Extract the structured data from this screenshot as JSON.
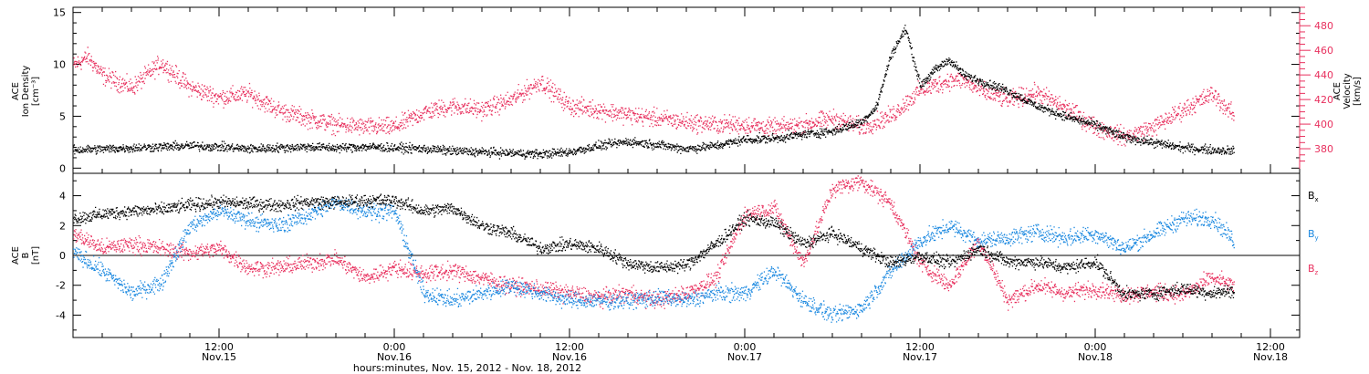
{
  "colors": {
    "black": "#000000",
    "pink": "#e8305e",
    "blue": "#1a88e0"
  },
  "footer": {
    "xlabel": "hours:minutes, Nov. 15, 2012 - Nov. 18, 2012"
  },
  "x_ticks": [
    {
      "t": 12,
      "line1": "12:00",
      "line2": "Nov.15"
    },
    {
      "t": 24,
      "line1": "0:00",
      "line2": "Nov.16"
    },
    {
      "t": 36,
      "line1": "12:00",
      "line2": "Nov.16"
    },
    {
      "t": 48,
      "line1": "0:00",
      "line2": "Nov.17"
    },
    {
      "t": 60,
      "line1": "12:00",
      "line2": "Nov.17"
    },
    {
      "t": 72,
      "line1": "0:00",
      "line2": "Nov.18"
    },
    {
      "t": 84,
      "line1": "12:00",
      "line2": "Nov.18"
    }
  ],
  "chart_data": [
    {
      "type": "scatter",
      "title": "",
      "xlim_hours": [
        2,
        86
      ],
      "ylabel": [
        "ACE",
        "Ion Density",
        "[cm⁻³]"
      ],
      "ylim": [
        -0.5,
        15.5
      ],
      "yticks": [
        0,
        5,
        10,
        15
      ],
      "y2label": [
        "ACE",
        "Velocity",
        "[km/s]"
      ],
      "y2lim": [
        360,
        495
      ],
      "y2ticks": [
        380,
        400,
        420,
        440,
        460,
        480
      ],
      "series": [
        {
          "color": "black",
          "axis": "left",
          "x": [
            2,
            4,
            6,
            8,
            10,
            12,
            14,
            16,
            18,
            20,
            22,
            24,
            26,
            28,
            30,
            32,
            34,
            36,
            38,
            40,
            42,
            44,
            46,
            48,
            50,
            52,
            54,
            56,
            57,
            58,
            59,
            60,
            61,
            62,
            63,
            64,
            65,
            66,
            68,
            70,
            72,
            74,
            76,
            78,
            80,
            81.5
          ],
          "y": [
            1.8,
            1.9,
            2.0,
            2.1,
            2.2,
            2.1,
            1.9,
            2.0,
            2.1,
            2.0,
            2.1,
            2.0,
            1.9,
            1.7,
            1.6,
            1.5,
            1.4,
            1.6,
            2.2,
            2.6,
            2.3,
            1.9,
            2.2,
            2.8,
            2.9,
            3.3,
            3.6,
            4.5,
            6.0,
            11.0,
            13.5,
            8.0,
            9.5,
            10.5,
            9.0,
            8.5,
            8.0,
            7.5,
            6.0,
            5.0,
            4.2,
            3.0,
            2.5,
            2.0,
            1.8,
            1.7
          ]
        },
        {
          "color": "pink",
          "axis": "right",
          "x": [
            2,
            3,
            4,
            6,
            8,
            10,
            12,
            14,
            16,
            18,
            20,
            22,
            24,
            26,
            28,
            30,
            32,
            34,
            36,
            38,
            40,
            42,
            44,
            46,
            48,
            50,
            52,
            54,
            56,
            58,
            60,
            62,
            63,
            64,
            66,
            68,
            70,
            72,
            74,
            76,
            78,
            80,
            81.5
          ],
          "y": [
            448,
            455,
            440,
            430,
            450,
            430,
            422,
            425,
            412,
            405,
            400,
            398,
            398,
            410,
            415,
            412,
            420,
            435,
            415,
            412,
            408,
            405,
            402,
            400,
            400,
            397,
            400,
            405,
            398,
            407,
            428,
            436,
            436,
            428,
            420,
            426,
            413,
            398,
            390,
            398,
            412,
            425,
            407
          ]
        }
      ]
    },
    {
      "type": "scatter",
      "title": "",
      "xlim_hours": [
        2,
        86
      ],
      "ylabel": [
        "ACE",
        "B",
        "[nT]"
      ],
      "ylim": [
        -5.5,
        5.5
      ],
      "yticks": [
        -4,
        -2,
        0,
        2,
        4
      ],
      "legend": {
        "placement": "right",
        "entries": [
          {
            "label": "B",
            "sub": "x",
            "color": "black"
          },
          {
            "label": "B",
            "sub": "y",
            "color": "blue"
          },
          {
            "label": "B",
            "sub": "z",
            "color": "pink"
          }
        ]
      },
      "series": [
        {
          "name": "Bx",
          "color": "black",
          "x": [
            2,
            4,
            6,
            8,
            10,
            12,
            14,
            16,
            18,
            20,
            22,
            24,
            26,
            28,
            30,
            32,
            34,
            36,
            38,
            40,
            42,
            44,
            46,
            48,
            50,
            52,
            54,
            56,
            58,
            60,
            62,
            64,
            66,
            68,
            70,
            72,
            74,
            76,
            78,
            80,
            81.5
          ],
          "y": [
            2.5,
            2.8,
            3.0,
            3.1,
            3.4,
            3.6,
            3.5,
            3.4,
            3.6,
            3.6,
            3.7,
            3.7,
            3.0,
            3.2,
            2.0,
            1.5,
            0.5,
            0.8,
            0.5,
            -0.5,
            -0.8,
            -0.6,
            0.8,
            2.5,
            2.2,
            0.8,
            1.5,
            0.5,
            -0.5,
            0.0,
            -0.5,
            0.5,
            -0.4,
            -0.4,
            -0.8,
            -0.4,
            -2.6,
            -2.5,
            -2.2,
            -2.5,
            -2.3
          ]
        },
        {
          "name": "By",
          "color": "blue",
          "x": [
            2,
            4,
            6,
            8,
            10,
            12,
            14,
            16,
            18,
            20,
            22,
            24,
            26,
            28,
            30,
            32,
            34,
            36,
            38,
            40,
            42,
            44,
            46,
            48,
            50,
            52,
            54,
            56,
            58,
            60,
            62,
            64,
            66,
            68,
            70,
            72,
            74,
            76,
            78,
            80,
            81.5
          ],
          "y": [
            0.2,
            -1.0,
            -2.5,
            -1.8,
            2.0,
            3.0,
            2.4,
            2.0,
            2.7,
            3.6,
            3.0,
            3.0,
            -2.5,
            -3.0,
            -2.5,
            -2.0,
            -2.5,
            -3.0,
            -3.0,
            -3.0,
            -2.8,
            -3.0,
            -2.5,
            -2.5,
            -1.0,
            -3.0,
            -4.0,
            -3.5,
            -1.0,
            1.0,
            2.0,
            1.0,
            1.2,
            1.6,
            1.2,
            1.5,
            0.5,
            1.5,
            2.5,
            2.5,
            1.0
          ]
        },
        {
          "name": "Bz",
          "color": "pink",
          "x": [
            2,
            4,
            6,
            8,
            10,
            12,
            14,
            16,
            18,
            20,
            22,
            24,
            26,
            28,
            30,
            32,
            34,
            36,
            38,
            40,
            42,
            44,
            46,
            48,
            50,
            52,
            54,
            56,
            58,
            60,
            62,
            64,
            66,
            68,
            70,
            72,
            74,
            76,
            78,
            80,
            81.5
          ],
          "y": [
            1.5,
            0.5,
            0.8,
            0.5,
            0.2,
            0.5,
            -0.8,
            -0.8,
            -0.5,
            -0.2,
            -1.5,
            -0.8,
            -1.2,
            -1.0,
            -1.5,
            -2.0,
            -2.2,
            -2.5,
            -2.8,
            -2.5,
            -3.0,
            -2.5,
            -1.5,
            2.8,
            3.2,
            -0.5,
            4.5,
            5.0,
            3.5,
            -0.5,
            -2.0,
            1.0,
            -3.0,
            -2.0,
            -2.5,
            -2.2,
            -2.6,
            -2.4,
            -2.6,
            -1.5,
            -2.0
          ]
        }
      ]
    }
  ]
}
